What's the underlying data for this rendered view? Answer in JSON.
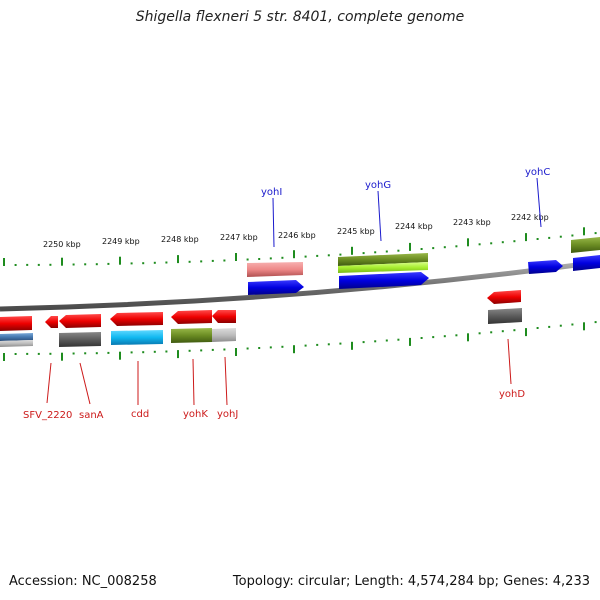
{
  "title": "Shigella flexneri 5 str. 8401, complete genome",
  "accession": "Accession: NC_008258",
  "topology": "Topology: circular; Length: 4,574,284 bp; Genes: 4,233",
  "ruler_labels": [
    "2250 kbp",
    "2249 kbp",
    "2248 kbp",
    "2247 kbp",
    "2246 kbp",
    "2245 kbp",
    "2244 kbp",
    "2243 kbp",
    "2242 kbp"
  ],
  "genes_top": [
    "yohI",
    "yohG",
    "yohC"
  ],
  "genes_bottom": [
    "SFV_2220",
    "sanA",
    "cdd",
    "yohK",
    "yohJ",
    "yohD"
  ],
  "colors": {
    "forward_label": "#1a1acc",
    "reverse_label": "#cc1a1a",
    "forward_gene": "#0000ee",
    "reverse_gene": "#ee0000",
    "tick": "#1e8c1e",
    "backbone": "#808080"
  }
}
